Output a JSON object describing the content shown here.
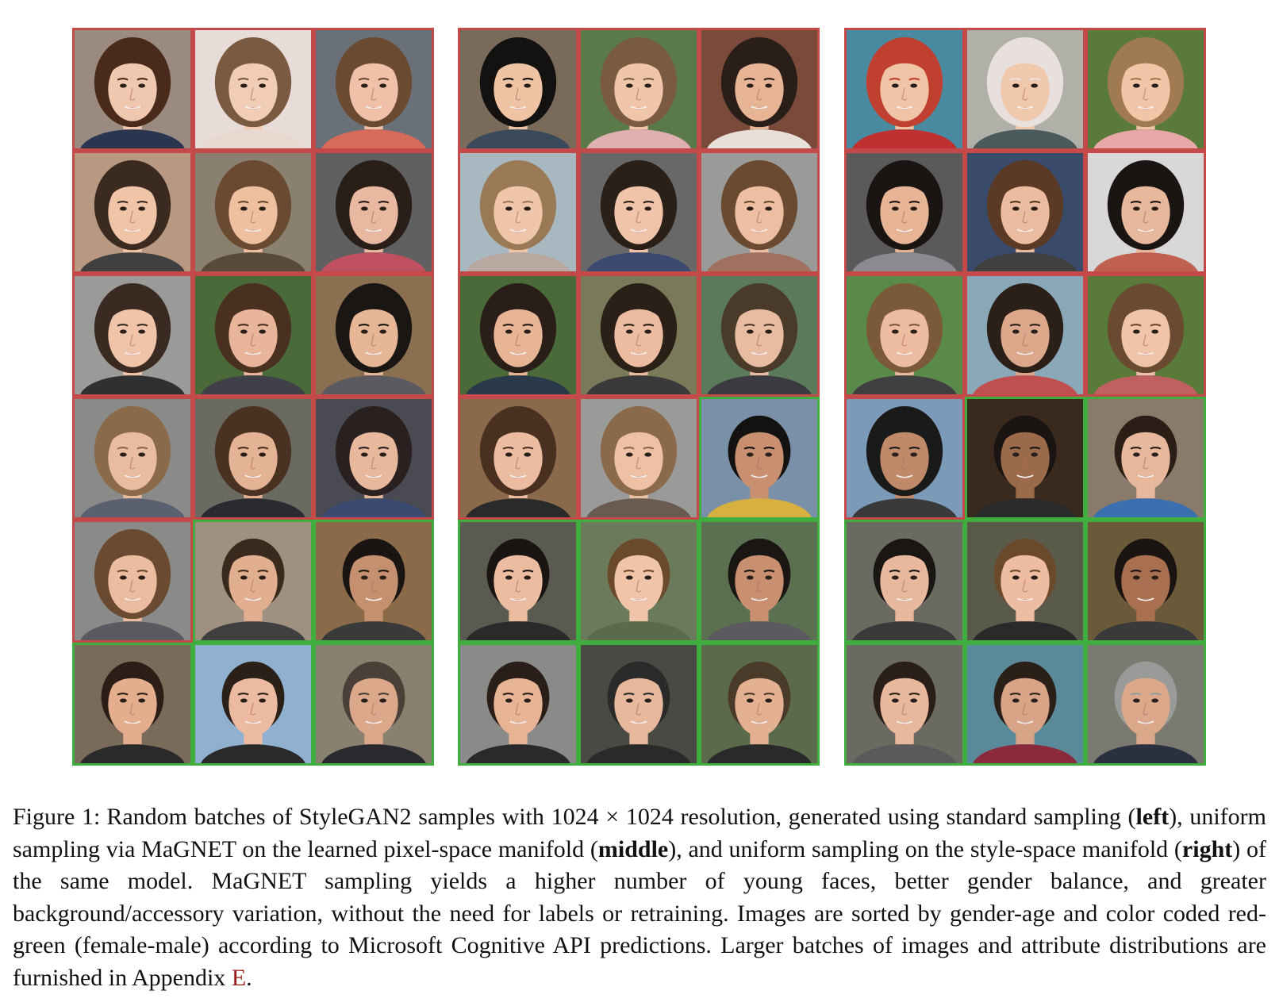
{
  "figure": {
    "panels": [
      {
        "key": "left",
        "rows": [
          [
            "female",
            "female",
            "female"
          ],
          [
            "female",
            "female",
            "female"
          ],
          [
            "female",
            "female",
            "female"
          ],
          [
            "female",
            "female",
            "female"
          ],
          [
            "female",
            "male",
            "male"
          ],
          [
            "male",
            "male",
            "male"
          ]
        ],
        "tiles": [
          {
            "bg": "#9a8a80",
            "skin": "#f0c8b0",
            "hair": "#4a2a1a",
            "shirt": "#2a3550"
          },
          {
            "bg": "#e8dcd8",
            "skin": "#f2cdb6",
            "hair": "#7a5a40",
            "shirt": "#e8d8d0"
          },
          {
            "bg": "#6a7078",
            "skin": "#f0c0a8",
            "hair": "#6a4a30",
            "shirt": "#d86a5a"
          },
          {
            "bg": "#b89880",
            "skin": "#f0c4a6",
            "hair": "#3a2a20",
            "shirt": "#404040"
          },
          {
            "bg": "#8a8070",
            "skin": "#eec0a0",
            "hair": "#6a4a30",
            "shirt": "#5a4a3a"
          },
          {
            "bg": "#606060",
            "skin": "#e8b8a0",
            "hair": "#2a1e18",
            "shirt": "#c05060"
          },
          {
            "bg": "#9a9a98",
            "skin": "#f0c4a8",
            "hair": "#3a2a22",
            "shirt": "#303030"
          },
          {
            "bg": "#4a6a3a",
            "skin": "#e8b49a",
            "hair": "#4a3020",
            "shirt": "#404048"
          },
          {
            "bg": "#8a7050",
            "skin": "#e6b696",
            "hair": "#1a1614",
            "shirt": "#5a5a60"
          },
          {
            "bg": "#8a8a88",
            "skin": "#e8bc9e",
            "hair": "#8a6a48",
            "shirt": "#5a6070"
          },
          {
            "bg": "#6a6a60",
            "skin": "#e4b294",
            "hair": "#4a3222",
            "shirt": "#2a2a30"
          },
          {
            "bg": "#4a4a52",
            "skin": "#e8b89c",
            "hair": "#2a2020",
            "shirt": "#3a4a70"
          },
          {
            "bg": "#8a8a88",
            "skin": "#ecbca0",
            "hair": "#6a4a30",
            "shirt": "#5a5a60"
          },
          {
            "bg": "#a09080",
            "skin": "#e2ae90",
            "hair": "#3a2a1e",
            "shirt": "#404040"
          },
          {
            "bg": "#8a6a48",
            "skin": "#c49070",
            "hair": "#1a1412",
            "shirt": "#3a3a3a"
          },
          {
            "bg": "#7a6a5a",
            "skin": "#e4ae8e",
            "hair": "#2a1e16",
            "shirt": "#2a2a2a"
          },
          {
            "bg": "#90b0d0",
            "skin": "#ecbaa0",
            "hair": "#2a2018",
            "shirt": "#2a2a2a"
          },
          {
            "bg": "#8a8070",
            "skin": "#dca88c",
            "hair": "#4a4038",
            "shirt": "#2a2a2e"
          }
        ]
      },
      {
        "key": "middle",
        "rows": [
          [
            "female",
            "female",
            "female"
          ],
          [
            "female",
            "female",
            "female"
          ],
          [
            "female",
            "female",
            "female"
          ],
          [
            "female",
            "female",
            "male"
          ],
          [
            "male",
            "male",
            "male"
          ],
          [
            "male",
            "male",
            "male"
          ]
        ],
        "tiles": [
          {
            "bg": "#7a6a5a",
            "skin": "#eec4a4",
            "hair": "#141210",
            "shirt": "#3a4a5a"
          },
          {
            "bg": "#5a7a4a",
            "skin": "#f0c6aa",
            "hair": "#7a5a40",
            "shirt": "#e0b0b0"
          },
          {
            "bg": "#7a4a3a",
            "skin": "#e8b496",
            "hair": "#2a1e18",
            "shirt": "#e8e0d8"
          },
          {
            "bg": "#a8b8c0",
            "skin": "#f0c6aa",
            "hair": "#9a7a56",
            "shirt": "#b8a8a0"
          },
          {
            "bg": "#686868",
            "skin": "#f0c4a8",
            "hair": "#2a2018",
            "shirt": "#3a4a70"
          },
          {
            "bg": "#9a9a98",
            "skin": "#eebea2",
            "hair": "#6a4a30",
            "shirt": "#a07060"
          },
          {
            "bg": "#4a6a3a",
            "skin": "#e8b496",
            "hair": "#2a1e18",
            "shirt": "#2a3a4a"
          },
          {
            "bg": "#7a7a5a",
            "skin": "#ecbca0",
            "hair": "#2a2018",
            "shirt": "#3a3a3a"
          },
          {
            "bg": "#5a7a5a",
            "skin": "#e8bca0",
            "hair": "#4a3a2a",
            "shirt": "#3a3a40"
          },
          {
            "bg": "#8a6a4a",
            "skin": "#ecbca0",
            "hair": "#4a3020",
            "shirt": "#2a2a2a"
          },
          {
            "bg": "#9a9a98",
            "skin": "#eec0a4",
            "hair": "#8a6a4a",
            "shirt": "#6a5a50"
          },
          {
            "bg": "#7a90a8",
            "skin": "#c89070",
            "hair": "#141210",
            "shirt": "#d8b040"
          },
          {
            "bg": "#5a5a50",
            "skin": "#ecbca0",
            "hair": "#1a1412",
            "shirt": "#2a2a2a"
          },
          {
            "bg": "#6a7a5a",
            "skin": "#f0c4a8",
            "hair": "#6a4a2a",
            "shirt": "#5a6a4a"
          },
          {
            "bg": "#5a7050",
            "skin": "#c89070",
            "hair": "#1a1614",
            "shirt": "#5a5a60"
          },
          {
            "bg": "#8a8a88",
            "skin": "#e8b496",
            "hair": "#2a1e18",
            "shirt": "#2a2a2a"
          },
          {
            "bg": "#4a4a44",
            "skin": "#e8b89c",
            "hair": "#2a2a2a",
            "shirt": "#2a2a2a"
          },
          {
            "bg": "#5a6a4a",
            "skin": "#e4b092",
            "hair": "#4a3a2a",
            "shirt": "#2a2a2a"
          }
        ]
      },
      {
        "key": "right",
        "rows": [
          [
            "female",
            "female",
            "female"
          ],
          [
            "female",
            "female",
            "female"
          ],
          [
            "female",
            "female",
            "female"
          ],
          [
            "female",
            "male",
            "male"
          ],
          [
            "male",
            "male",
            "male"
          ],
          [
            "male",
            "male",
            "male"
          ]
        ],
        "tiles": [
          {
            "bg": "#4a8aa0",
            "skin": "#f0c4a6",
            "hair": "#c04030",
            "shirt": "#c03030"
          },
          {
            "bg": "#b0b0a8",
            "skin": "#f0c8ac",
            "hair": "#e8e0dc",
            "shirt": "#4a5a5a"
          },
          {
            "bg": "#5a7a3a",
            "skin": "#f0c6a8",
            "hair": "#a07a50",
            "shirt": "#e8a8a8"
          },
          {
            "bg": "#5a5a5a",
            "skin": "#e8b496",
            "hair": "#1a1412",
            "shirt": "#8a8a90"
          },
          {
            "bg": "#3a4a6a",
            "skin": "#ecbca0",
            "hair": "#5a3a24",
            "shirt": "#404040"
          },
          {
            "bg": "#d8d8d8",
            "skin": "#e8b89c",
            "hair": "#1a1412",
            "shirt": "#c06050"
          },
          {
            "bg": "#5a8a4a",
            "skin": "#eebca0",
            "hair": "#7a5a3a",
            "shirt": "#404040"
          },
          {
            "bg": "#8aa8b8",
            "skin": "#dca88c",
            "hair": "#2a2018",
            "shirt": "#c05050"
          },
          {
            "bg": "#5a7a3a",
            "skin": "#f0c4a8",
            "hair": "#6a4a30",
            "shirt": "#c06060"
          },
          {
            "bg": "#7a9ab8",
            "skin": "#c08a6a",
            "hair": "#1a1a1a",
            "shirt": "#3a3a3a"
          },
          {
            "bg": "#3a2a1e",
            "skin": "#9a6a4a",
            "hair": "#1a1412",
            "shirt": "#2a2a2a"
          },
          {
            "bg": "#8a7a6a",
            "skin": "#e8b89c",
            "hair": "#2a1e16",
            "shirt": "#3a70b0"
          },
          {
            "bg": "#6a6a60",
            "skin": "#e8b89c",
            "hair": "#1a1614",
            "shirt": "#3a3a3a"
          },
          {
            "bg": "#5a5a4a",
            "skin": "#eebca0",
            "hair": "#6a4a2a",
            "shirt": "#2a2a2a"
          },
          {
            "bg": "#6a5a3a",
            "skin": "#a87050",
            "hair": "#1a1412",
            "shirt": "#3a3a3a"
          },
          {
            "bg": "#6a6a60",
            "skin": "#e8b89c",
            "hair": "#2a1e18",
            "shirt": "#5a5a5a"
          },
          {
            "bg": "#5a8a9a",
            "skin": "#d8a488",
            "hair": "#2a2018",
            "shirt": "#8a2a3a"
          },
          {
            "bg": "#7a7a70",
            "skin": "#dca88c",
            "hair": "#9a9a98",
            "shirt": "#2a3040"
          }
        ]
      }
    ],
    "colors": {
      "female_border": "#c44a4a",
      "male_border": "#3fae3f",
      "reference_link": "#9a1b1b"
    }
  },
  "caption": {
    "label": "Figure 1:",
    "t1": "Random batches of StyleGAN2 samples with 1024 × 1024 resolution, generated using standard sampling (",
    "b1": "left",
    "t2": "), uniform sampling via MaGNET on the learned pixel-space manifold (",
    "b2": "middle",
    "t3": "), and uniform sampling on the style-space manifold (",
    "b3": "right",
    "t4": ") of the same model. MaGNET sampling yields a higher number of young faces, better gender balance, and greater background/accessory variation, without the need for labels or retraining. Images are sorted by gender-age and color coded red-green (female-male) according to Microsoft Cognitive API predictions. Larger batches of images and attribute distributions are furnished in Appendix ",
    "ref": "E",
    "t5": "."
  }
}
